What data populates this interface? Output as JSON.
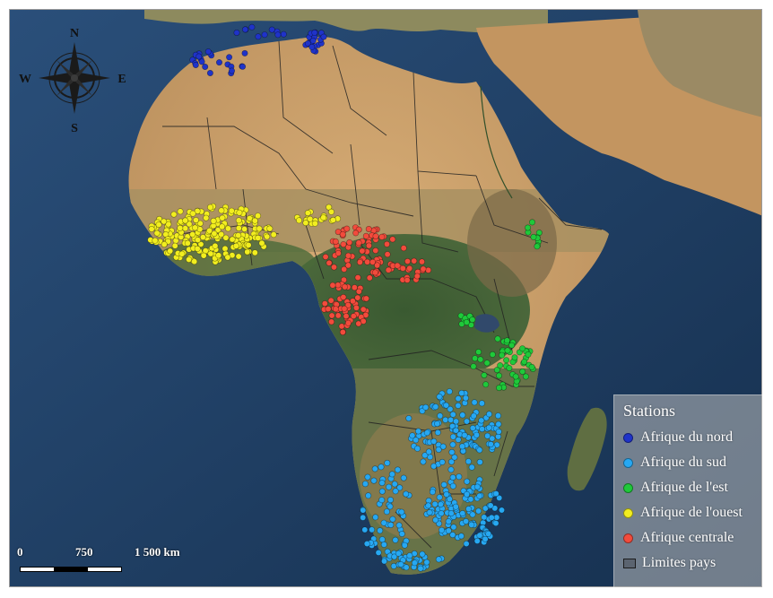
{
  "compass": {
    "north": "N",
    "south": "S",
    "east": "E",
    "west": "W"
  },
  "legend": {
    "title": "Stations",
    "items": [
      {
        "label": "Afrique du nord",
        "color": "#1f33c9"
      },
      {
        "label": "Afrique du sud",
        "color": "#27a8f2"
      },
      {
        "label": "Afrique de l'est",
        "color": "#1fc93a"
      },
      {
        "label": "Afrique de l'ouest",
        "color": "#f2ee1f"
      },
      {
        "label": "Afrique centrale",
        "color": "#f24b3c"
      }
    ],
    "borders_label": "Limites pays"
  },
  "scale": {
    "tick_0": "0",
    "tick_1": "750",
    "tick_2": "1 500 km"
  },
  "colors": {
    "ocean": "#1d3a5f",
    "desert": "#c89a64",
    "sahel": "#b99a6a",
    "forest": "#3f5f34",
    "savanna": "#6c7a45",
    "border": "#222222"
  }
}
